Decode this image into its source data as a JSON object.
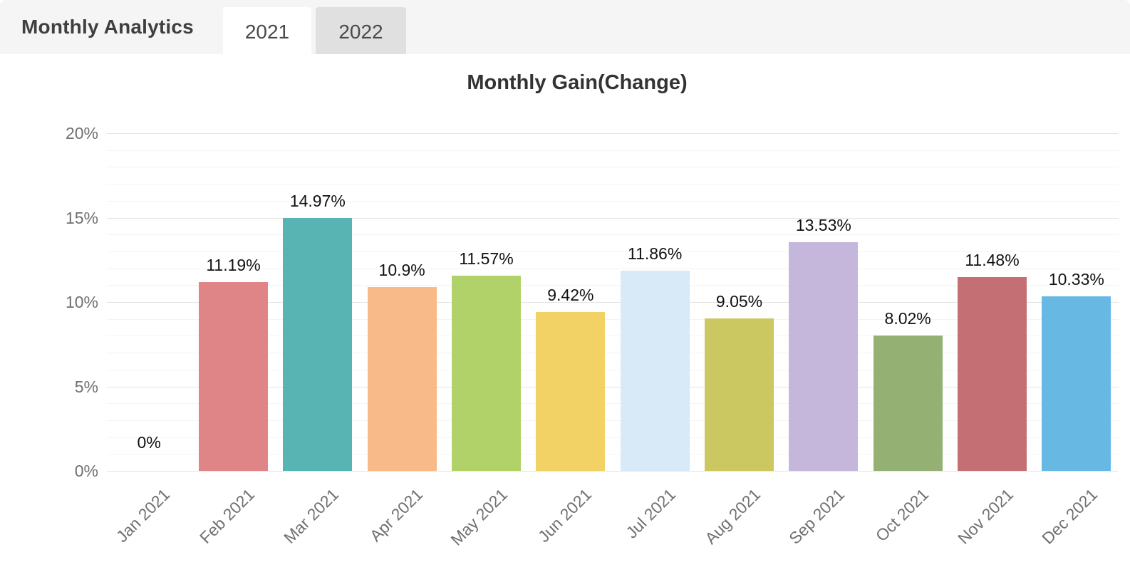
{
  "header": {
    "title": "Monthly Analytics",
    "tabs": [
      {
        "label": "2021",
        "active": true
      },
      {
        "label": "2022",
        "active": false
      }
    ]
  },
  "chart_data": {
    "type": "bar",
    "title": "Monthly Gain(Change)",
    "categories": [
      "Jan 2021",
      "Feb 2021",
      "Mar 2021",
      "Apr 2021",
      "May 2021",
      "Jun 2021",
      "Jul 2021",
      "Aug 2021",
      "Sep 2021",
      "Oct 2021",
      "Nov 2021",
      "Dec 2021"
    ],
    "values": [
      0,
      11.19,
      14.97,
      10.9,
      11.57,
      9.42,
      11.86,
      9.05,
      13.53,
      8.02,
      11.48,
      10.33
    ],
    "data_labels": [
      "0%",
      "11.19%",
      "14.97%",
      "10.9%",
      "11.57%",
      "9.42%",
      "11.86%",
      "9.05%",
      "13.53%",
      "8.02%",
      "11.48%",
      "10.33%"
    ],
    "bar_colors": [
      null,
      "#df8487",
      "#58b3b3",
      "#f9ba8a",
      "#b1d269",
      "#f2d264",
      "#d8e9f8",
      "#cbc862",
      "#c5b6dc",
      "#94b073",
      "#c46f74",
      "#67b9e4"
    ],
    "xlabel": "",
    "ylabel": "",
    "ylim": [
      0,
      20
    ],
    "yticks": [
      0,
      5,
      10,
      15,
      20
    ],
    "ytick_labels": [
      "0%",
      "5%",
      "10%",
      "15%",
      "20%"
    ],
    "minor_tick_step": 1,
    "grid": true,
    "legend": "none"
  },
  "colors": {
    "header_bg": "#f5f5f5",
    "tab_active_bg": "#ffffff",
    "tab_inactive_bg": "#e0e0e0",
    "title_text": "#3f3f3f",
    "chart_title_text": "#333333",
    "axis_label_text": "#707070",
    "data_label_text": "#111111",
    "major_gridline": "#e4e4e4",
    "minor_gridline": "#f4f4f4"
  }
}
